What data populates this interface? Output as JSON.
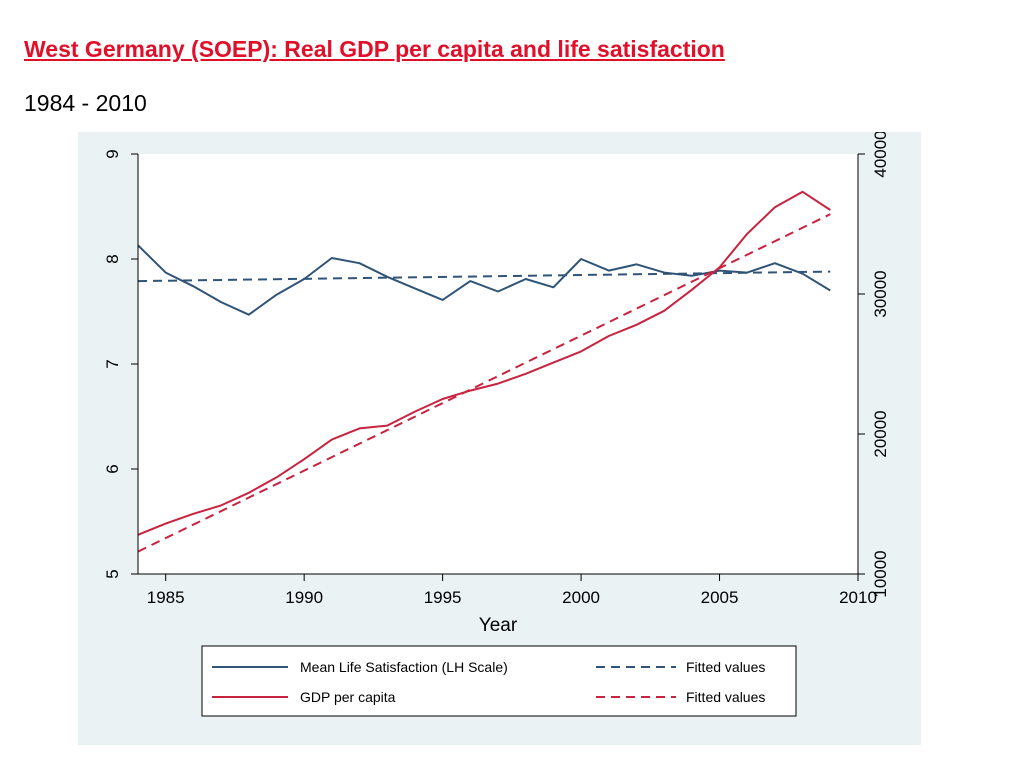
{
  "slide": {
    "title": "West Germany (SOEP): Real GDP per capita and life satisfaction",
    "subtitle": "1984 - 2010"
  },
  "colors": {
    "panel_bg": "#eaf2f3",
    "plot_bg": "#ffffff",
    "life_satisfaction": "#2f5478",
    "gdp": "#c8233f"
  },
  "chart_data": {
    "type": "line",
    "xlabel": "Year",
    "x_ticks": [
      1985,
      1990,
      1995,
      2000,
      2005,
      2010
    ],
    "y_left_ticks": [
      5,
      6,
      7,
      8,
      9
    ],
    "y_right_ticks": [
      10000,
      20000,
      30000,
      40000
    ],
    "xlim": [
      1984,
      2010
    ],
    "ylim_left": [
      5,
      9
    ],
    "ylim_right": [
      10000,
      40000
    ],
    "legend_position": "bottom",
    "series": [
      {
        "name": "Mean Life Satisfaction (LH Scale)",
        "axis": "left",
        "style": "solid",
        "color": "#2f5478",
        "x": [
          1984,
          1985,
          1986,
          1987,
          1988,
          1989,
          1990,
          1991,
          1992,
          1993,
          1994,
          1995,
          1996,
          1997,
          1998,
          1999,
          2000,
          2001,
          2002,
          2003,
          2004,
          2005,
          2006,
          2007,
          2008,
          2009
        ],
        "y": [
          8.13,
          7.87,
          7.74,
          7.59,
          7.47,
          7.66,
          7.81,
          8.01,
          7.96,
          7.83,
          7.72,
          7.61,
          7.79,
          7.69,
          7.81,
          7.73,
          8.0,
          7.89,
          7.95,
          7.87,
          7.84,
          7.89,
          7.87,
          7.96,
          7.86,
          7.7
        ]
      },
      {
        "name": "Fitted values",
        "axis": "left",
        "style": "dashed",
        "color": "#2f5478",
        "x": [
          1984,
          2009
        ],
        "y": [
          7.79,
          7.88
        ]
      },
      {
        "name": "GDP per capita",
        "axis": "right",
        "style": "solid",
        "color": "#c8233f",
        "x": [
          1984,
          1985,
          1986,
          1987,
          1988,
          1989,
          1990,
          1991,
          1992,
          1993,
          1994,
          1995,
          1996,
          1997,
          1998,
          1999,
          2000,
          2001,
          2002,
          2003,
          2004,
          2005,
          2006,
          2007,
          2008,
          2009
        ],
        "y": [
          12800,
          13600,
          14300,
          14900,
          15800,
          16900,
          18200,
          19600,
          20400,
          20600,
          21600,
          22500,
          23100,
          23600,
          24300,
          25100,
          25900,
          27000,
          27800,
          28800,
          30300,
          31900,
          34300,
          36200,
          37300,
          36000
        ]
      },
      {
        "name": "Fitted values",
        "axis": "right",
        "style": "dashed",
        "color": "#c8233f",
        "x": [
          1984,
          2009
        ],
        "y": [
          11600,
          35700
        ]
      }
    ]
  }
}
